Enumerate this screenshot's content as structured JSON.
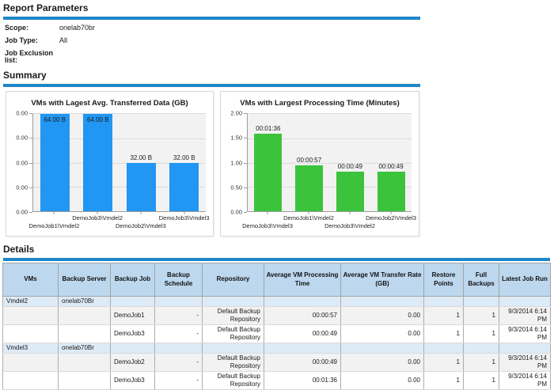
{
  "colors": {
    "divider_blue": "#1E86C8",
    "bar_blue": "#2196F3",
    "bar_green": "#3CC33C",
    "table_header_bg": "#BDD7EE",
    "group_row_bg": "#DDEBF7",
    "alt_row_bg": "#F2F2F2"
  },
  "report_parameters": {
    "heading": "Report Parameters",
    "params": [
      {
        "label": "Scope:",
        "value": "onelab70br"
      },
      {
        "label": "Job Type:",
        "value": "All"
      },
      {
        "label": "Job Exclusion list:",
        "value": ""
      }
    ]
  },
  "summary": {
    "heading": "Summary"
  },
  "chart_data": [
    {
      "type": "bar",
      "title": "VMs with Lagest Avg. Transferred Data (GB)",
      "categories": [
        "DemoJob1\\Vmdel2",
        "DemoJob3\\Vmdel2",
        "DemoJob2\\Vmdel3",
        "DemoJob3\\Vmdel3"
      ],
      "values": [
        64,
        64,
        32,
        32
      ],
      "values_unit": "bytes",
      "bar_labels": [
        "64.00 B",
        "64.00 B",
        "32.00 B",
        "32.00 B"
      ],
      "ylim": [
        0,
        64
      ],
      "y_tick_labels": [
        "0.00",
        "0.00",
        "0.00",
        "0.00",
        "0.00"
      ],
      "bar_color": "#2196F3",
      "grid": true,
      "legend": false
    },
    {
      "type": "bar",
      "title": "VMs with Largest Processing Time (Minutes)",
      "categories": [
        "DemoJob3\\Vmdel3",
        "DemoJob1\\Vmdel2",
        "DemoJob3\\Vmdel2",
        "DemoJob2\\Vmdel3"
      ],
      "values": [
        1.6,
        0.95,
        0.82,
        0.82
      ],
      "values_unit": "minutes",
      "bar_labels": [
        "00:01:36",
        "00:00:57",
        "00:00:49",
        "00:00:49"
      ],
      "ylim": [
        0,
        2
      ],
      "y_tick_labels": [
        "2.00",
        "1.50",
        "1.00",
        "0.50",
        "0.00"
      ],
      "bar_color": "#3CC33C",
      "grid": true,
      "legend": false
    }
  ],
  "details": {
    "heading": "Details",
    "columns": [
      "VMs",
      "Backup Server",
      "Backup Job",
      "Backup Schedule",
      "Repository",
      "Average VM Processing Time",
      "Average VM Transfer Rate (GB)",
      "Restore Points",
      "Full Backups",
      "Latest Job Run"
    ],
    "rows": [
      {
        "type": "group",
        "cells": [
          "Vmdel2",
          "onelab70Br",
          "",
          "",
          "",
          "",
          "",
          "",
          "",
          ""
        ]
      },
      {
        "type": "data",
        "cells": [
          "",
          "",
          "DemoJob1",
          "-",
          "Default Backup Repository",
          "00:00:57",
          "0.00",
          "1",
          "1",
          "9/3/2014 6:14 PM"
        ]
      },
      {
        "type": "data",
        "cells": [
          "",
          "",
          "DemoJob3",
          "-",
          "Default Backup Repository",
          "00:00:49",
          "0.00",
          "1",
          "1",
          "9/3/2014 6:14 PM"
        ]
      },
      {
        "type": "group",
        "cells": [
          "Vmdel3",
          "onelab70Br",
          "",
          "",
          "",
          "",
          "",
          "",
          "",
          ""
        ]
      },
      {
        "type": "data",
        "cells": [
          "",
          "",
          "DemoJob2",
          "-",
          "Default Backup Repository",
          "00:00:49",
          "0.00",
          "1",
          "1",
          "9/3/2014 6:14 PM"
        ]
      },
      {
        "type": "data",
        "cells": [
          "",
          "",
          "DemoJob3",
          "-",
          "Default Backup Repository",
          "00:01:36",
          "0.00",
          "1",
          "1",
          "9/3/2014 6:14 PM"
        ]
      }
    ]
  }
}
